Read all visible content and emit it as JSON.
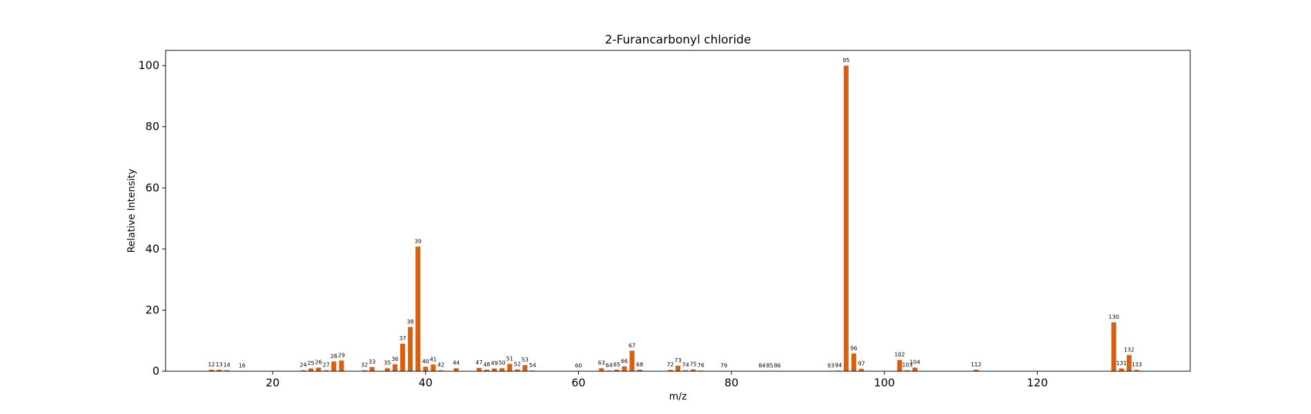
{
  "chart_data": {
    "type": "bar",
    "title": "2-Furancarbonyl chloride",
    "xlabel": "m/z",
    "ylabel": "Relative Intensity",
    "xlim": [
      6,
      140
    ],
    "ylim": [
      0,
      105
    ],
    "xticks": [
      20,
      40,
      60,
      80,
      100,
      120
    ],
    "yticks": [
      0,
      20,
      40,
      60,
      80,
      100
    ],
    "grid": false,
    "bar_color": "#d95f0e",
    "series": [
      {
        "peaks": [
          {
            "x": 12,
            "y": 0.5
          },
          {
            "x": 13,
            "y": 0.5
          },
          {
            "x": 14,
            "y": 0.3
          },
          {
            "x": 16,
            "y": 0.1
          },
          {
            "x": 24,
            "y": 0.3
          },
          {
            "x": 25,
            "y": 0.9
          },
          {
            "x": 26,
            "y": 1.2
          },
          {
            "x": 27,
            "y": 0.3
          },
          {
            "x": 28,
            "y": 3.2
          },
          {
            "x": 29,
            "y": 3.5
          },
          {
            "x": 32,
            "y": 0.3
          },
          {
            "x": 33,
            "y": 1.4
          },
          {
            "x": 35,
            "y": 1.0
          },
          {
            "x": 36,
            "y": 2.3
          },
          {
            "x": 37,
            "y": 9.0
          },
          {
            "x": 38,
            "y": 14.5
          },
          {
            "x": 39,
            "y": 40.8
          },
          {
            "x": 40,
            "y": 1.5
          },
          {
            "x": 41,
            "y": 2.2
          },
          {
            "x": 42,
            "y": 0.3
          },
          {
            "x": 44,
            "y": 1.0
          },
          {
            "x": 47,
            "y": 1.1
          },
          {
            "x": 48,
            "y": 0.5
          },
          {
            "x": 49,
            "y": 0.9
          },
          {
            "x": 50,
            "y": 1.0
          },
          {
            "x": 51,
            "y": 2.4
          },
          {
            "x": 52,
            "y": 0.6
          },
          {
            "x": 53,
            "y": 2.0
          },
          {
            "x": 54,
            "y": 0.2
          },
          {
            "x": 60,
            "y": 0.1
          },
          {
            "x": 63,
            "y": 1.0
          },
          {
            "x": 64,
            "y": 0.2
          },
          {
            "x": 65,
            "y": 0.5
          },
          {
            "x": 66,
            "y": 1.6
          },
          {
            "x": 67,
            "y": 6.7
          },
          {
            "x": 68,
            "y": 0.5
          },
          {
            "x": 72,
            "y": 0.4
          },
          {
            "x": 73,
            "y": 1.8
          },
          {
            "x": 74,
            "y": 0.3
          },
          {
            "x": 75,
            "y": 0.6
          },
          {
            "x": 76,
            "y": 0.2
          },
          {
            "x": 79,
            "y": 0.1
          },
          {
            "x": 84,
            "y": 0.1
          },
          {
            "x": 85,
            "y": 0.1
          },
          {
            "x": 86,
            "y": 0.1
          },
          {
            "x": 93,
            "y": 0.1
          },
          {
            "x": 94,
            "y": 0.2
          },
          {
            "x": 95,
            "y": 100
          },
          {
            "x": 96,
            "y": 5.8
          },
          {
            "x": 97,
            "y": 0.8
          },
          {
            "x": 102,
            "y": 3.7
          },
          {
            "x": 103,
            "y": 0.3
          },
          {
            "x": 104,
            "y": 1.2
          },
          {
            "x": 112,
            "y": 0.5
          },
          {
            "x": 130,
            "y": 16.0
          },
          {
            "x": 131,
            "y": 0.9
          },
          {
            "x": 132,
            "y": 5.3
          },
          {
            "x": 133,
            "y": 0.4
          }
        ]
      }
    ]
  }
}
